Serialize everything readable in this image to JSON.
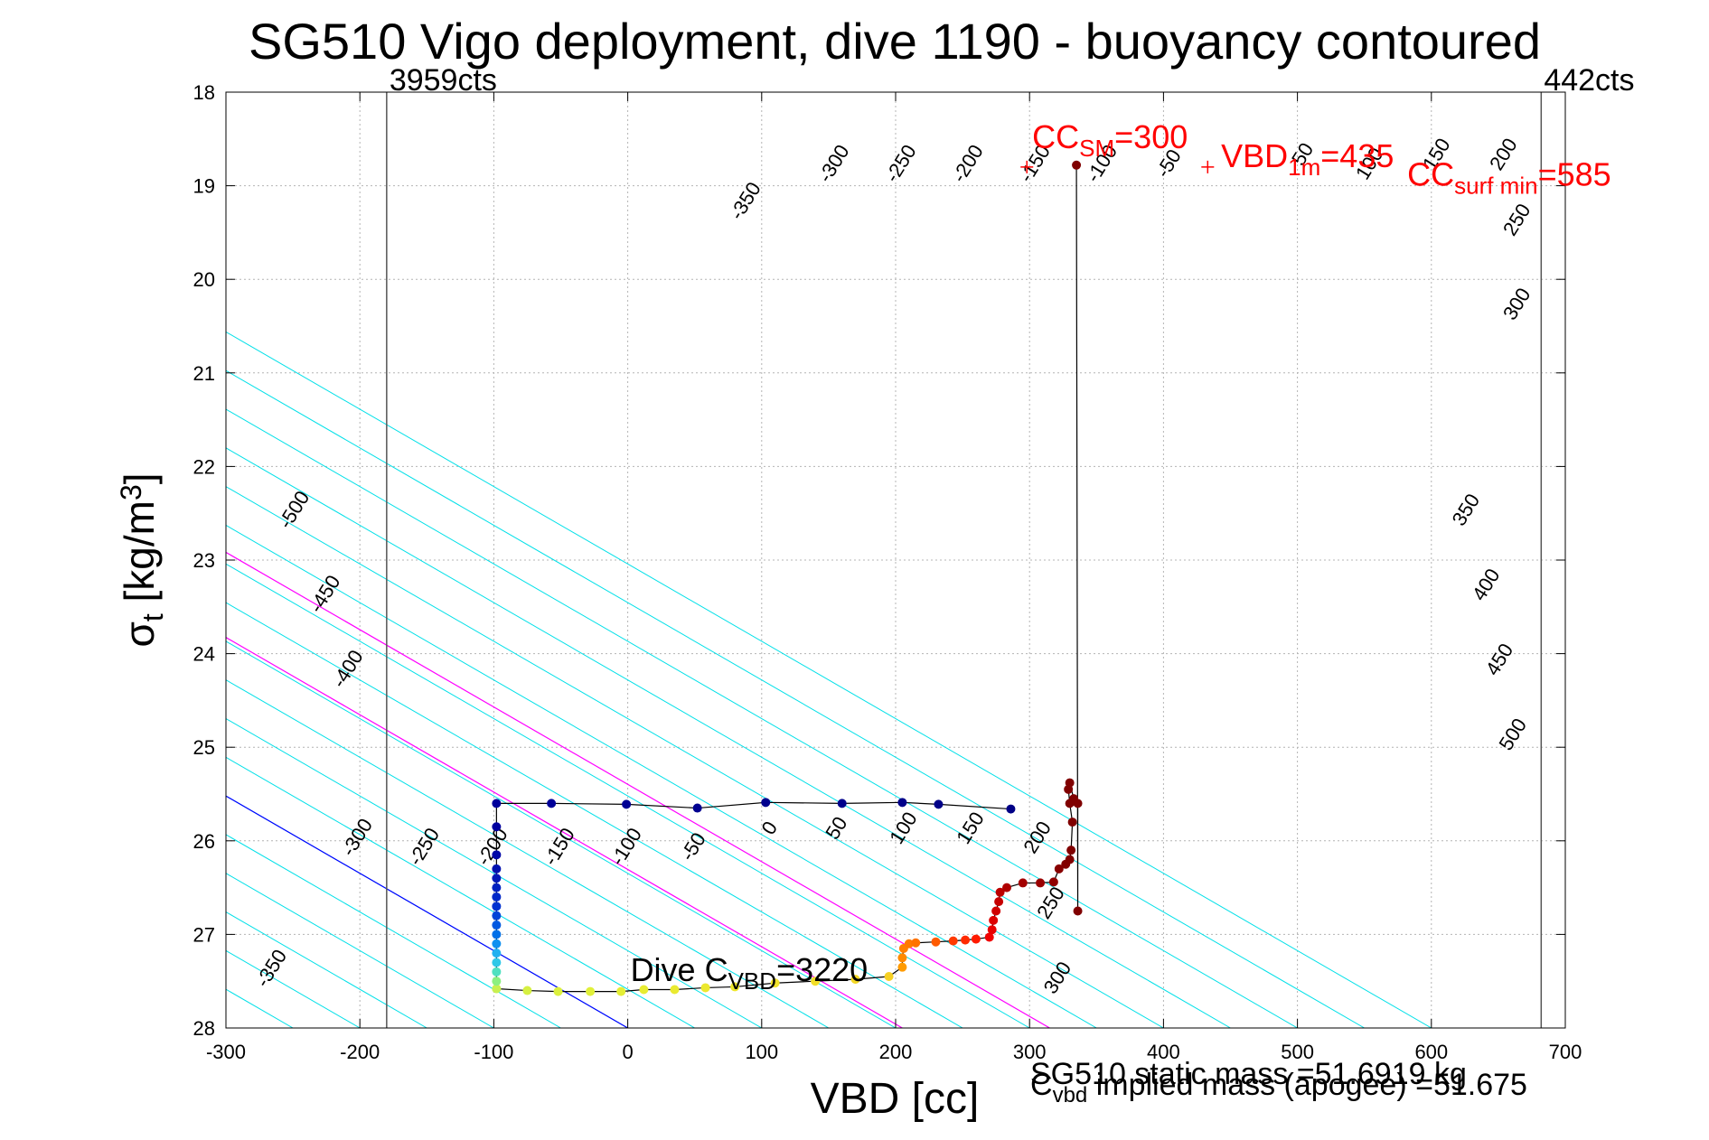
{
  "chart_data": {
    "type": "line",
    "title": "SG510 Vigo deployment, dive 1190 - buoyancy contoured",
    "xlabel": "VBD [cc]",
    "ylabel": {
      "base": "σ",
      "sub": "t",
      "rest": " [kg/m",
      "sup": "3",
      "end": "]"
    },
    "xlim": [
      -300,
      700
    ],
    "ylim": [
      18,
      28
    ],
    "y_reversed": true,
    "grid": true,
    "x_ticks": [
      -300,
      -200,
      -100,
      0,
      100,
      200,
      300,
      400,
      500,
      600,
      700
    ],
    "y_ticks": [
      18,
      19,
      20,
      21,
      22,
      23,
      24,
      25,
      26,
      27,
      28
    ],
    "vlines": [
      {
        "x": -180,
        "label": "3959cts"
      },
      {
        "x": 682,
        "label": "442cts"
      }
    ],
    "buoyancy_contours": {
      "pivot_vbd": 100,
      "pivot_sigma": 28,
      "slope_vbd_per_sigma": 121,
      "levels": [
        -500,
        -450,
        -400,
        -350,
        -300,
        -250,
        -200,
        -150,
        -100,
        -50,
        0,
        50,
        100,
        150,
        200,
        250,
        300,
        350,
        400,
        450,
        500
      ],
      "label_points": [
        {
          "text": "-500",
          "x": -245,
          "y": 22.5
        },
        {
          "text": "-450",
          "x": -222,
          "y": 23.4
        },
        {
          "text": "-400",
          "x": -205,
          "y": 24.2
        },
        {
          "text": "-350",
          "x": -262,
          "y": 27.4
        },
        {
          "text": "-300",
          "x": -198,
          "y": 26.0
        },
        {
          "text": "-250",
          "x": -148,
          "y": 26.1
        },
        {
          "text": "-200",
          "x": -97,
          "y": 26.1
        },
        {
          "text": "-150",
          "x": -47,
          "y": 26.1
        },
        {
          "text": "-100",
          "x": 3,
          "y": 26.1
        },
        {
          "text": "-50",
          "x": 53,
          "y": 26.1
        },
        {
          "text": "0",
          "x": 110,
          "y": 25.9
        },
        {
          "text": "50",
          "x": 160,
          "y": 25.9
        },
        {
          "text": "100",
          "x": 210,
          "y": 25.9
        },
        {
          "text": "150",
          "x": 260,
          "y": 25.9
        },
        {
          "text": "200",
          "x": 310,
          "y": 26.0
        },
        {
          "text": "250",
          "x": 320,
          "y": 26.7
        },
        {
          "text": "300",
          "x": 325,
          "y": 27.5
        },
        {
          "text": "-350",
          "x": 92,
          "y": 19.2
        },
        {
          "text": "-300",
          "x": 158,
          "y": 18.8
        },
        {
          "text": "-250",
          "x": 208,
          "y": 18.8
        },
        {
          "text": "-200",
          "x": 258,
          "y": 18.8
        },
        {
          "text": "-150",
          "x": 308,
          "y": 18.8
        },
        {
          "text": "-100",
          "x": 358,
          "y": 18.8
        },
        {
          "text": "-50",
          "x": 408,
          "y": 18.8
        },
        {
          "text": "50",
          "x": 508,
          "y": 18.7
        },
        {
          "text": "100",
          "x": 558,
          "y": 18.8
        },
        {
          "text": "150",
          "x": 608,
          "y": 18.7
        },
        {
          "text": "200",
          "x": 658,
          "y": 18.7
        },
        {
          "text": "250",
          "x": 668,
          "y": 19.4
        },
        {
          "text": "300",
          "x": 668,
          "y": 20.3
        },
        {
          "text": "350",
          "x": 630,
          "y": 22.5
        },
        {
          "text": "400",
          "x": 645,
          "y": 23.3
        },
        {
          "text": "450",
          "x": 655,
          "y": 24.1
        },
        {
          "text": "500",
          "x": 665,
          "y": 24.9
        }
      ]
    },
    "reference_lines": [
      {
        "name": "VBD_nb",
        "color": "#0000ff",
        "x_at_ylim_bottom": 0,
        "slope_vbd_per_sigma": 121
      },
      {
        "name": "CC_sm",
        "color": "#ff00ff",
        "x_at_ylim_bottom": 205,
        "slope_vbd_per_sigma": 121
      },
      {
        "name": "CC_surf_min",
        "color": "#ff00ff",
        "x_at_ylim_bottom": 315,
        "slope_vbd_per_sigma": 121
      }
    ],
    "red_markers": [
      {
        "x": 298,
        "y": 18.8
      },
      {
        "x": 433,
        "y": 18.8
      }
    ],
    "red_labels": [
      {
        "base": "CC",
        "sub": "SM",
        "rest": "=300",
        "x": 302,
        "y": 18.6
      },
      {
        "base": "VBD",
        "sub": "1m",
        "rest": "=435",
        "x": 443,
        "y": 18.8
      },
      {
        "base": "CC",
        "sub": "surf min",
        "rest": "=585",
        "x": 582,
        "y": 19.0
      }
    ],
    "dive_label": {
      "base": "Dive C",
      "sub": "VBD",
      "rest": "=3220",
      "x": 2,
      "y": 27.5
    },
    "footer_label_1": "SG510 static mass =51.6919 kg",
    "footer_label_2": {
      "base": "C",
      "sub": "vbd",
      "rest": " implied mass (apogee) =51.675"
    },
    "dive_series": [
      {
        "x": -98,
        "y": 27.58,
        "color": "#d4f044"
      },
      {
        "x": -75,
        "y": 27.6,
        "color": "#d6f042"
      },
      {
        "x": -52,
        "y": 27.61,
        "color": "#dcf03e"
      },
      {
        "x": -28,
        "y": 27.61,
        "color": "#e0f03a"
      },
      {
        "x": -5,
        "y": 27.61,
        "color": "#e4ee36"
      },
      {
        "x": 12,
        "y": 27.59,
        "color": "#e8ec32"
      },
      {
        "x": 35,
        "y": 27.59,
        "color": "#eaea30"
      },
      {
        "x": 58,
        "y": 27.57,
        "color": "#ece82e"
      },
      {
        "x": 80,
        "y": 27.56,
        "color": "#eee62c"
      },
      {
        "x": 110,
        "y": 27.52,
        "color": "#f0e22a"
      },
      {
        "x": 140,
        "y": 27.5,
        "color": "#f2de28"
      },
      {
        "x": 170,
        "y": 27.48,
        "color": "#f4d826"
      },
      {
        "x": 195,
        "y": 27.45,
        "color": "#f6d024"
      },
      {
        "x": 205,
        "y": 27.35,
        "color": "#ff9a00"
      },
      {
        "x": 205,
        "y": 27.25,
        "color": "#ff8a00"
      },
      {
        "x": 206,
        "y": 27.15,
        "color": "#ff8000"
      },
      {
        "x": 210,
        "y": 27.1,
        "color": "#ff7a00"
      },
      {
        "x": 215,
        "y": 27.09,
        "color": "#ff7200"
      },
      {
        "x": 230,
        "y": 27.08,
        "color": "#ff5a00"
      },
      {
        "x": 243,
        "y": 27.07,
        "color": "#ff3a00"
      },
      {
        "x": 252,
        "y": 27.06,
        "color": "#ff2a00"
      },
      {
        "x": 260,
        "y": 27.05,
        "color": "#ff1a00"
      },
      {
        "x": 270,
        "y": 27.03,
        "color": "#f00000"
      },
      {
        "x": 272,
        "y": 26.95,
        "color": "#e80000"
      },
      {
        "x": 273,
        "y": 26.85,
        "color": "#dd0000"
      },
      {
        "x": 275,
        "y": 26.75,
        "color": "#d00000"
      },
      {
        "x": 277,
        "y": 26.65,
        "color": "#c60000"
      },
      {
        "x": 278,
        "y": 26.55,
        "color": "#bc0000"
      },
      {
        "x": 283,
        "y": 26.5,
        "color": "#b00000"
      },
      {
        "x": 295,
        "y": 26.45,
        "color": "#a40000"
      },
      {
        "x": 308,
        "y": 26.45,
        "color": "#9a0000"
      },
      {
        "x": 318,
        "y": 26.44,
        "color": "#900000"
      },
      {
        "x": 322,
        "y": 26.3,
        "color": "#880000"
      },
      {
        "x": 327,
        "y": 26.25,
        "color": "#820000"
      },
      {
        "x": 330,
        "y": 26.2,
        "color": "#800000"
      },
      {
        "x": 331,
        "y": 26.1,
        "color": "#800000"
      },
      {
        "x": 332,
        "y": 25.8,
        "color": "#800000"
      },
      {
        "x": 330,
        "y": 25.6,
        "color": "#800000"
      },
      {
        "x": 329,
        "y": 25.45,
        "color": "#800000"
      },
      {
        "x": 330,
        "y": 25.38,
        "color": "#800000"
      },
      {
        "x": 333,
        "y": 25.55,
        "color": "#800000"
      },
      {
        "x": 336,
        "y": 25.6,
        "color": "#800000"
      },
      {
        "x": 336,
        "y": 26.75,
        "color": "#800000"
      },
      {
        "x": 335,
        "y": 18.78,
        "color": "#800000"
      }
    ],
    "climb_series": [
      {
        "x": -98,
        "y": 27.58,
        "color": "#c8f050"
      },
      {
        "x": -98,
        "y": 27.5,
        "color": "#8cf080"
      },
      {
        "x": -98,
        "y": 27.4,
        "color": "#50e0c0"
      },
      {
        "x": -98,
        "y": 27.3,
        "color": "#30c8e8"
      },
      {
        "x": -98,
        "y": 27.2,
        "color": "#20b0f0"
      },
      {
        "x": -98,
        "y": 27.1,
        "color": "#1090f0"
      },
      {
        "x": -98,
        "y": 27.0,
        "color": "#0070e8"
      },
      {
        "x": -98,
        "y": 26.9,
        "color": "#0058e0"
      },
      {
        "x": -98,
        "y": 26.8,
        "color": "#0044d8"
      },
      {
        "x": -98,
        "y": 26.7,
        "color": "#0032d0"
      },
      {
        "x": -98,
        "y": 26.6,
        "color": "#0028c8"
      },
      {
        "x": -98,
        "y": 26.5,
        "color": "#0020c0"
      },
      {
        "x": -98,
        "y": 26.4,
        "color": "#0018b8"
      },
      {
        "x": -98,
        "y": 26.3,
        "color": "#0010b0"
      },
      {
        "x": -98,
        "y": 26.15,
        "color": "#0008a8"
      },
      {
        "x": -98,
        "y": 25.85,
        "color": "#0000a0"
      },
      {
        "x": -98,
        "y": 25.6,
        "color": "#00009c"
      },
      {
        "x": -57,
        "y": 25.6,
        "color": "#000098"
      },
      {
        "x": -1,
        "y": 25.61,
        "color": "#000094"
      },
      {
        "x": 52,
        "y": 25.65,
        "color": "#000090"
      },
      {
        "x": 103,
        "y": 25.59,
        "color": "#00008e"
      },
      {
        "x": 160,
        "y": 25.6,
        "color": "#00008c"
      },
      {
        "x": 205,
        "y": 25.59,
        "color": "#00008a"
      },
      {
        "x": 232,
        "y": 25.61,
        "color": "#000088"
      },
      {
        "x": 286,
        "y": 25.66,
        "color": "#000086"
      }
    ]
  }
}
